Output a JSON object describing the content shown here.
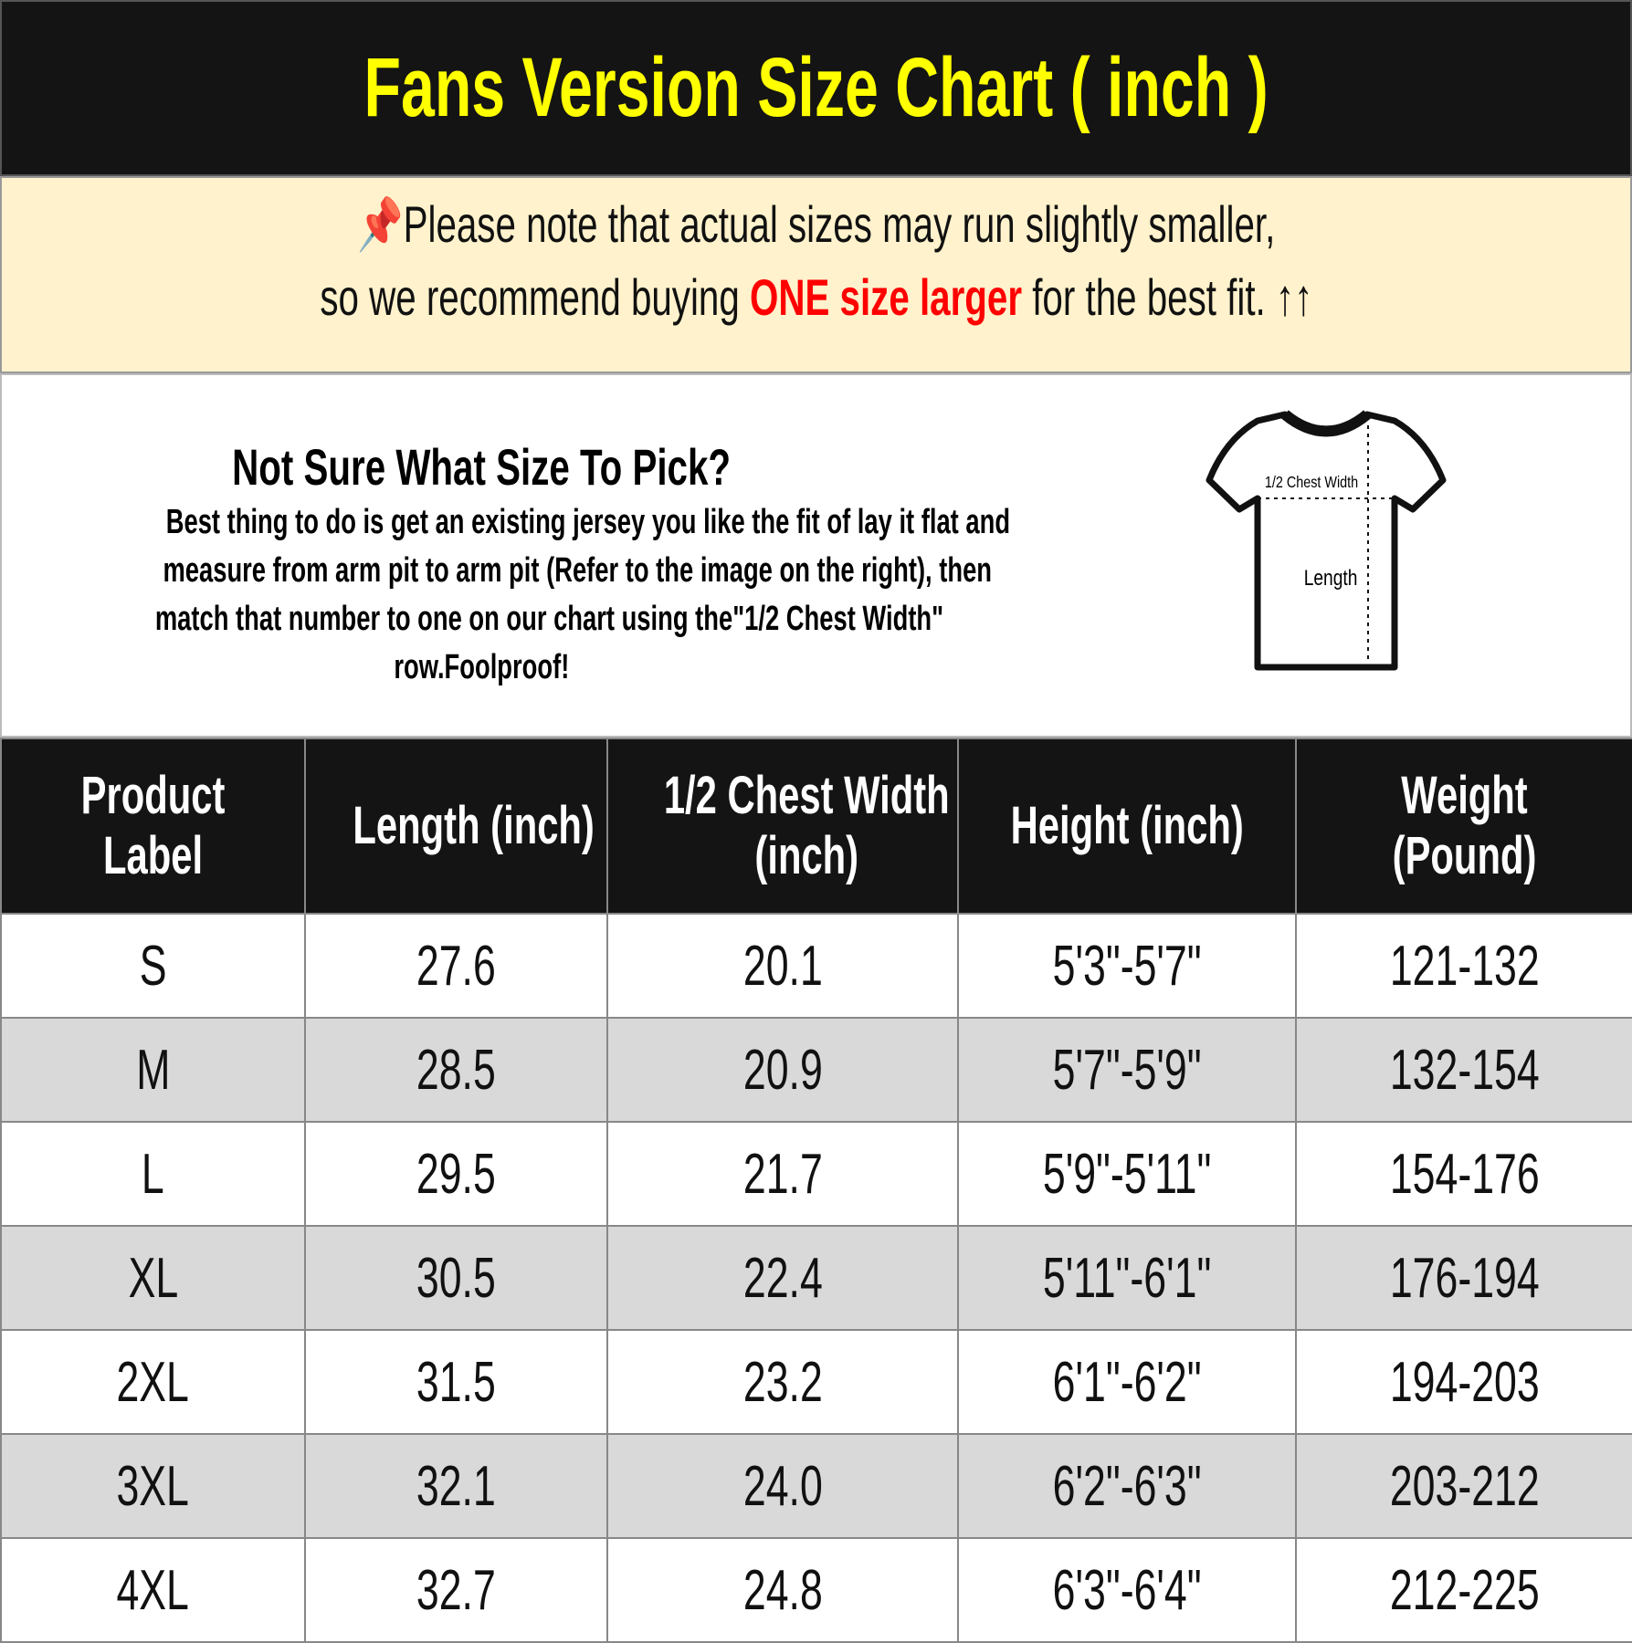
{
  "title": "Fans Version Size Chart ( inch )",
  "notice": {
    "pin_icon": "pushpin-icon",
    "line1": "Please note that actual sizes may run slightly smaller,",
    "line2_pre": "so we recommend buying ",
    "line2_highlight": "ONE size larger",
    "line2_post": " for the best fit. ",
    "arrows": "↑↑",
    "highlight_color": "#ff0000"
  },
  "guide": {
    "question": "Not Sure What Size To Pick?",
    "lines": [
      "Best thing to do is get an existing jersey you like the fit of lay it flat and",
      "measure from arm pit to arm pit (Refer to the image on the right), then",
      "match that number to one on our chart using the\"1/2 Chest Width\"",
      "row.Foolproof!"
    ],
    "diagram": {
      "chest_label": "1/2 Chest Width",
      "length_label": "Length"
    }
  },
  "table": {
    "headers": [
      [
        "Product",
        "Label"
      ],
      [
        "Length (inch)"
      ],
      [
        "1/2 Chest Width",
        "(inch)"
      ],
      [
        "Height (inch)"
      ],
      [
        "Weight",
        "(Pound)"
      ]
    ],
    "rows": [
      [
        "S",
        "27.6",
        "20.1",
        "5'3\"-5'7\"",
        "121-132"
      ],
      [
        "M",
        "28.5",
        "20.9",
        "5'7\"-5'9\"",
        "132-154"
      ],
      [
        "L",
        "29.5",
        "21.7",
        "5'9\"-5'11\"",
        "154-176"
      ],
      [
        "XL",
        "30.5",
        "22.4",
        "5'11\"-6'1\"",
        "176-194"
      ],
      [
        "2XL",
        "31.5",
        "23.2",
        "6'1\"-6'2\"",
        "194-203"
      ],
      [
        "3XL",
        "32.1",
        "24.0",
        "6'2\"-6'3\"",
        "203-212"
      ],
      [
        "4XL",
        "32.7",
        "24.8",
        "6'3\"-6'4\"",
        "212-225"
      ]
    ]
  }
}
